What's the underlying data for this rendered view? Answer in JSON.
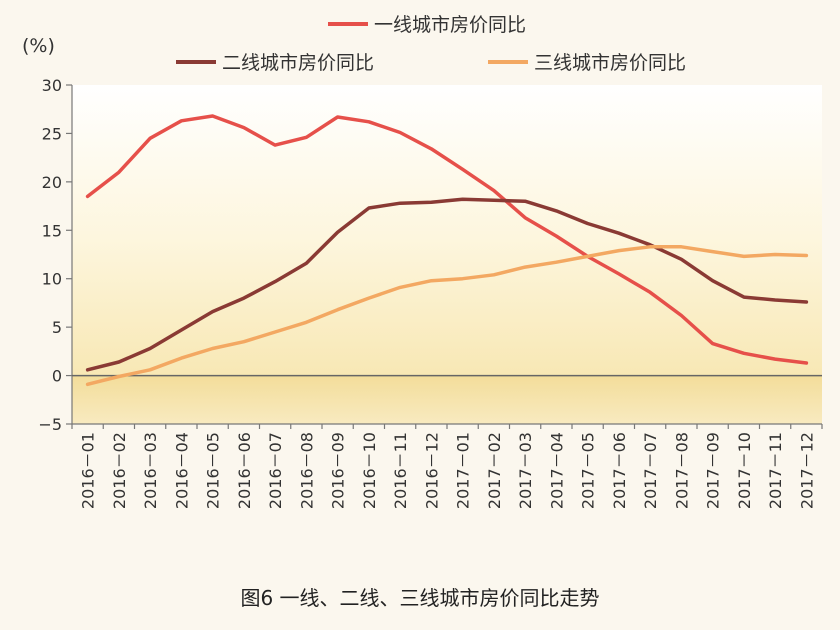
{
  "chart_data": {
    "type": "line",
    "unit_label": "(%)",
    "caption": "图6  一线、二线、三线城市房价同比走势",
    "x": [
      "2016－01",
      "2016－02",
      "2016－03",
      "2016－04",
      "2016－05",
      "2016－06",
      "2016－07",
      "2016－08",
      "2016－09",
      "2016－10",
      "2016－11",
      "2016－12",
      "2017－01",
      "2017－02",
      "2017－03",
      "2017－04",
      "2017－05",
      "2017－06",
      "2017－07",
      "2017－08",
      "2017－09",
      "2017－10",
      "2017－11",
      "2017－12"
    ],
    "ylim": [
      -5,
      30
    ],
    "yticks": [
      -5,
      0,
      5,
      10,
      15,
      20,
      25,
      30
    ],
    "grid": false,
    "legend_position": "top",
    "series": [
      {
        "name": "一线城市房价同比",
        "color": "#e6504a",
        "values": [
          18.5,
          21.0,
          24.5,
          26.3,
          26.8,
          25.6,
          23.8,
          24.6,
          26.7,
          26.2,
          25.1,
          23.4,
          21.3,
          19.1,
          16.3,
          14.4,
          12.3,
          10.5,
          8.6,
          6.2,
          3.3,
          2.3,
          1.7,
          1.3
        ]
      },
      {
        "name": "二线城市房价同比",
        "color": "#8a3a34",
        "values": [
          0.6,
          1.4,
          2.8,
          4.7,
          6.6,
          8.0,
          9.7,
          11.6,
          14.8,
          17.3,
          17.8,
          17.9,
          18.2,
          18.1,
          18.0,
          17.0,
          15.7,
          14.7,
          13.5,
          12.0,
          9.8,
          8.1,
          7.8,
          7.6
        ]
      },
      {
        "name": "三线城市房价同比",
        "color": "#f3a862",
        "values": [
          -0.9,
          -0.1,
          0.6,
          1.8,
          2.8,
          3.5,
          4.5,
          5.5,
          6.8,
          8.0,
          9.1,
          9.8,
          10.0,
          10.4,
          11.2,
          11.7,
          12.3,
          12.9,
          13.3,
          13.3,
          12.8,
          12.3,
          12.5,
          12.4
        ]
      }
    ]
  }
}
